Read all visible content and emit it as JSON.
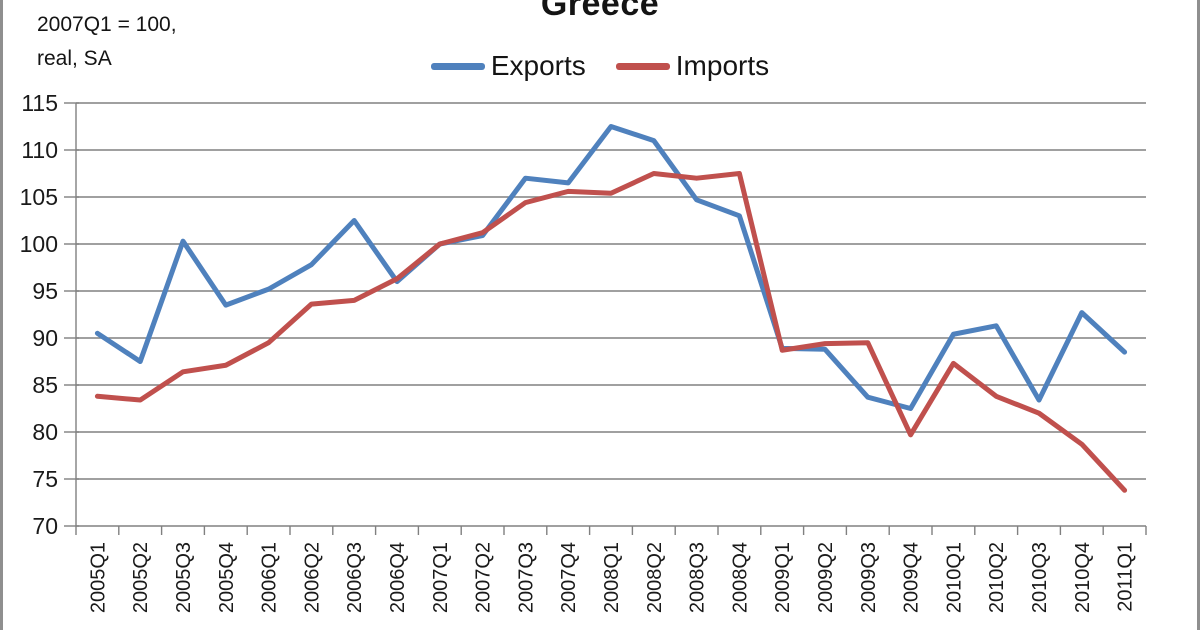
{
  "note": {
    "line1": "2007Q1 = 100,",
    "line2": "real, SA"
  },
  "chart_data": {
    "type": "line",
    "title": "Greece",
    "xlabel": "",
    "ylabel": "",
    "ylim": [
      70,
      115
    ],
    "ytick_step": 5,
    "yticks": [
      115,
      110,
      105,
      100,
      95,
      90,
      85,
      80,
      75,
      70
    ],
    "grid": true,
    "legend_position": "top-center",
    "axis_color": "#808080",
    "text_color": "#1a1a1a",
    "line_width": 5,
    "categories": [
      "2005Q1",
      "2005Q2",
      "2005Q3",
      "2005Q4",
      "2006Q1",
      "2006Q2",
      "2006Q3",
      "2006Q4",
      "2007Q1",
      "2007Q2",
      "2007Q3",
      "2007Q4",
      "2008Q1",
      "2008Q2",
      "2008Q3",
      "2008Q4",
      "2009Q1",
      "2009Q2",
      "2009Q3",
      "2009Q4",
      "2010Q1",
      "2010Q2",
      "2010Q3",
      "2010Q4",
      "2011Q1"
    ],
    "series": [
      {
        "name": "Exports",
        "color": "#4F81BD",
        "values": [
          90.5,
          87.5,
          100.3,
          93.5,
          95.2,
          97.8,
          102.5,
          96.0,
          100.0,
          100.9,
          107.0,
          106.5,
          112.5,
          111.0,
          104.7,
          103.0,
          88.9,
          88.8,
          83.7,
          82.5,
          90.4,
          91.3,
          83.4,
          92.7,
          88.5
        ]
      },
      {
        "name": "Imports",
        "color": "#C0504D",
        "values": [
          83.8,
          83.4,
          86.4,
          87.1,
          89.5,
          93.6,
          94.0,
          96.3,
          100.0,
          101.2,
          104.4,
          105.6,
          105.4,
          107.5,
          107.0,
          107.5,
          88.7,
          89.4,
          89.5,
          79.7,
          87.3,
          83.8,
          82.0,
          78.7,
          73.8
        ]
      }
    ]
  }
}
